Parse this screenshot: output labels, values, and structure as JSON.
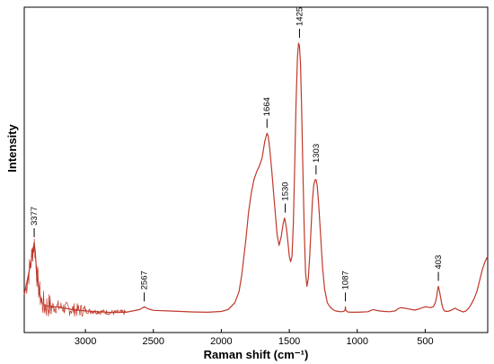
{
  "chart_data": {
    "type": "line",
    "xlabel": "Raman shift (cm⁻¹)",
    "ylabel": "Intensity",
    "xlim": [
      3450,
      40
    ],
    "ylim": [
      0,
      1
    ],
    "x_reversed": true,
    "grid": false,
    "line_color": "#c0392b",
    "x_ticks": [
      {
        "value": 3000,
        "label": "3000"
      },
      {
        "value": 2500,
        "label": "2500"
      },
      {
        "value": 2000,
        "label": "2000"
      },
      {
        "value": 1500,
        "label": "1500"
      },
      {
        "value": 1000,
        "label": "1000"
      },
      {
        "value": 500,
        "label": "500"
      }
    ],
    "series": [
      {
        "x": [
          3450,
          3420,
          3400,
          3390,
          3380,
          3377,
          3370,
          3360,
          3340,
          3320,
          3300,
          3250,
          3200,
          3100,
          3000,
          2900,
          2800,
          2700,
          2600,
          2567,
          2540,
          2500,
          2400,
          2300,
          2200,
          2100,
          2000,
          1950,
          1900,
          1870,
          1850,
          1820,
          1800,
          1780,
          1760,
          1740,
          1720,
          1700,
          1690,
          1680,
          1670,
          1664,
          1655,
          1645,
          1630,
          1610,
          1590,
          1575,
          1560,
          1545,
          1535,
          1530,
          1520,
          1510,
          1500,
          1490,
          1480,
          1470,
          1460,
          1450,
          1440,
          1432,
          1425,
          1418,
          1410,
          1400,
          1390,
          1380,
          1370,
          1360,
          1350,
          1340,
          1330,
          1320,
          1310,
          1303,
          1295,
          1285,
          1270,
          1255,
          1240,
          1220,
          1200,
          1180,
          1160,
          1140,
          1120,
          1100,
          1090,
          1087,
          1084,
          1070,
          1040,
          1000,
          960,
          920,
          900,
          880,
          860,
          840,
          800,
          760,
          720,
          700,
          680,
          650,
          620,
          600,
          580,
          560,
          540,
          520,
          500,
          480,
          460,
          440,
          425,
          415,
          408,
          403,
          398,
          390,
          380,
          370,
          360,
          340,
          320,
          300,
          280,
          260,
          240,
          220,
          200,
          180,
          160,
          140,
          120,
          100,
          80,
          60,
          40
        ],
        "y": [
          0.08,
          0.15,
          0.2,
          0.24,
          0.26,
          0.27,
          0.24,
          0.17,
          0.09,
          0.05,
          0.04,
          0.035,
          0.035,
          0.025,
          0.02,
          0.017,
          0.014,
          0.015,
          0.025,
          0.035,
          0.028,
          0.022,
          0.02,
          0.018,
          0.016,
          0.015,
          0.018,
          0.025,
          0.05,
          0.09,
          0.15,
          0.28,
          0.38,
          0.45,
          0.5,
          0.53,
          0.55,
          0.58,
          0.61,
          0.64,
          0.66,
          0.67,
          0.66,
          0.62,
          0.54,
          0.42,
          0.3,
          0.26,
          0.29,
          0.34,
          0.36,
          0.35,
          0.32,
          0.27,
          0.22,
          0.2,
          0.22,
          0.34,
          0.55,
          0.78,
          0.95,
          1.0,
          0.99,
          0.93,
          0.78,
          0.54,
          0.32,
          0.16,
          0.11,
          0.14,
          0.22,
          0.32,
          0.42,
          0.48,
          0.5,
          0.5,
          0.48,
          0.42,
          0.3,
          0.18,
          0.1,
          0.05,
          0.035,
          0.025,
          0.02,
          0.018,
          0.017,
          0.018,
          0.022,
          0.035,
          0.022,
          0.016,
          0.015,
          0.015,
          0.016,
          0.017,
          0.022,
          0.025,
          0.022,
          0.02,
          0.018,
          0.017,
          0.02,
          0.028,
          0.032,
          0.03,
          0.027,
          0.025,
          0.023,
          0.025,
          0.028,
          0.032,
          0.035,
          0.034,
          0.032,
          0.036,
          0.05,
          0.075,
          0.1,
          0.11,
          0.1,
          0.08,
          0.05,
          0.03,
          0.02,
          0.018,
          0.02,
          0.025,
          0.03,
          0.024,
          0.02,
          0.016,
          0.02,
          0.03,
          0.045,
          0.065,
          0.09,
          0.13,
          0.17,
          0.2,
          0.22
        ]
      }
    ],
    "annotations": [
      {
        "x": 3377,
        "label": "3377",
        "y": 0.27
      },
      {
        "x": 2567,
        "label": "2567",
        "y": 0.035
      },
      {
        "x": 1664,
        "label": "1664",
        "y": 0.67
      },
      {
        "x": 1530,
        "label": "1530",
        "y": 0.36
      },
      {
        "x": 1425,
        "label": "1425",
        "y": 1.0
      },
      {
        "x": 1303,
        "label": "1303",
        "y": 0.5
      },
      {
        "x": 1087,
        "label": "1087",
        "y": 0.035
      },
      {
        "x": 403,
        "label": "403",
        "y": 0.11
      }
    ]
  }
}
